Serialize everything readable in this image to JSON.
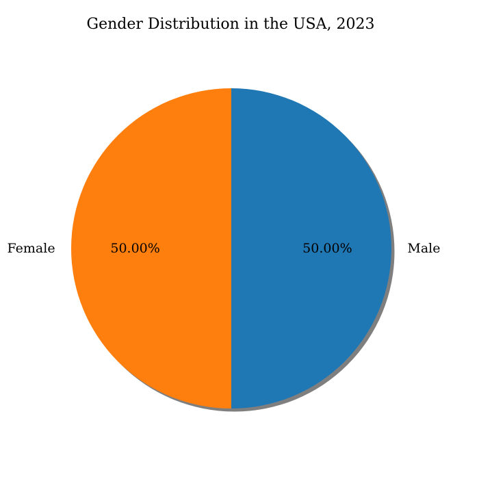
{
  "chart_data": {
    "type": "pie",
    "title": "Gender Distribution in the USA, 2023",
    "categories": [
      "Male",
      "Female"
    ],
    "values": [
      50.0,
      50.0
    ],
    "percent_labels": [
      "50.00%",
      "50.00%"
    ],
    "colors": [
      "#1f77b4",
      "#ff7f0e"
    ],
    "shadow": true,
    "start_angle_deg": 90,
    "direction": "clockwise",
    "legend": "none"
  }
}
